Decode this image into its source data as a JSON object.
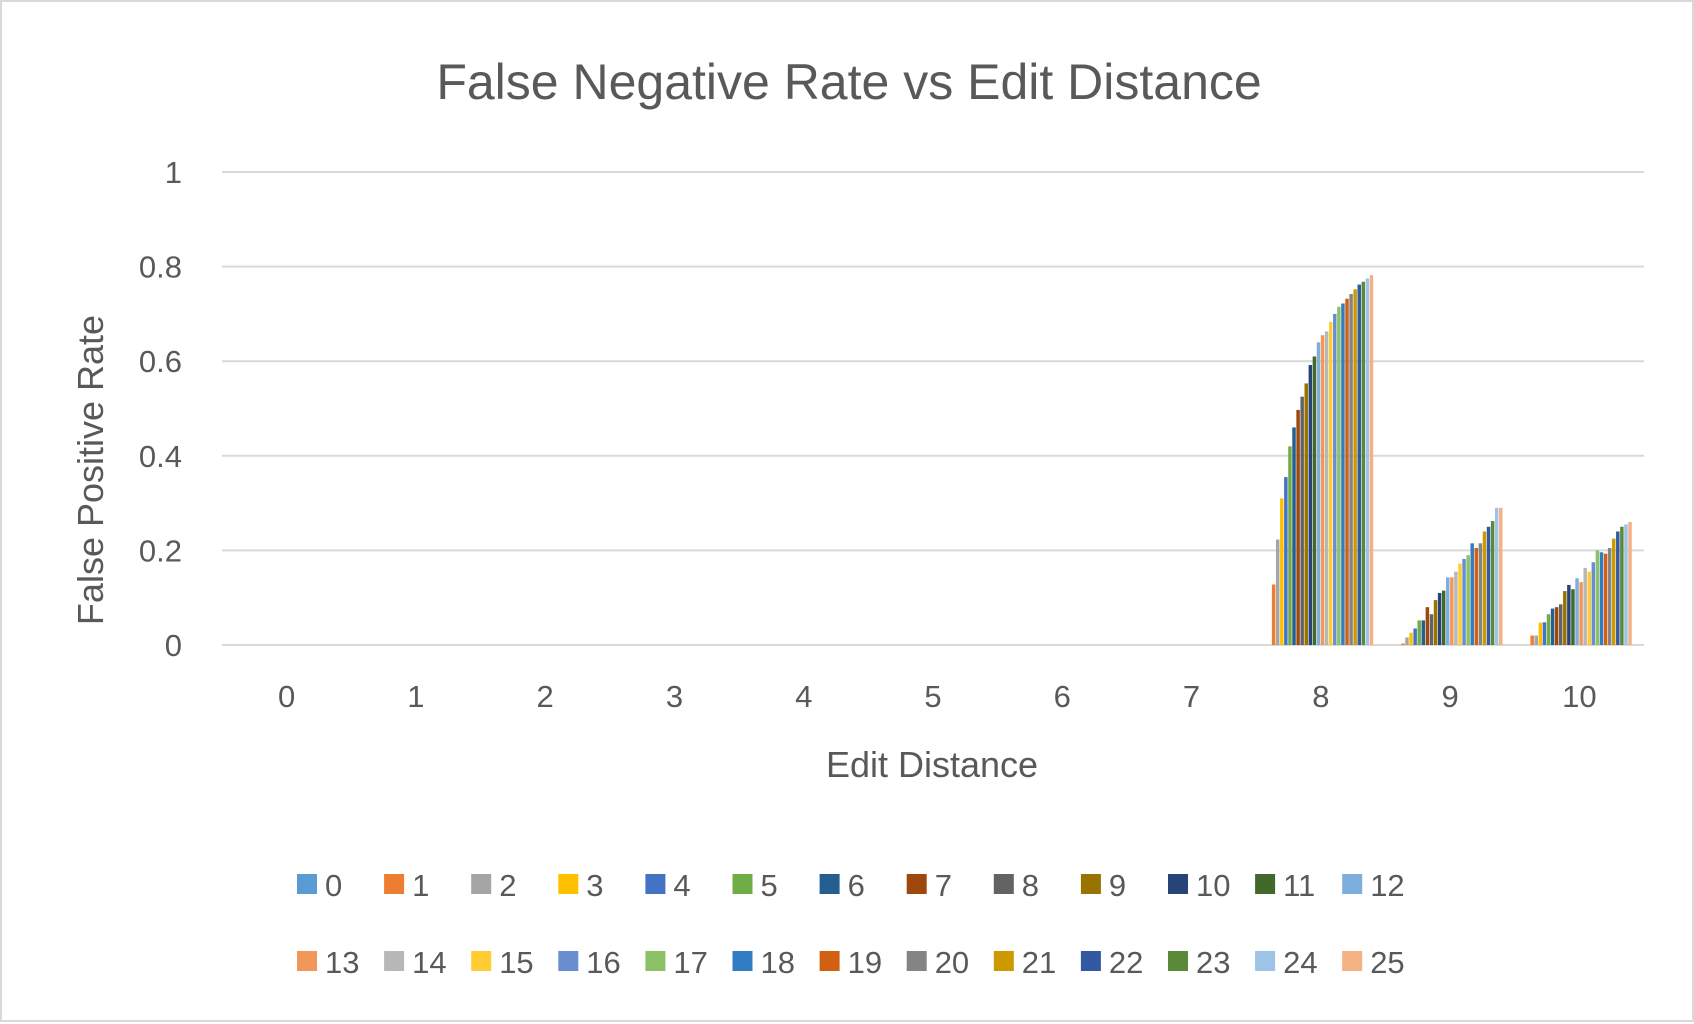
{
  "chart_data": {
    "type": "bar",
    "title": "False Negative Rate vs Edit Distance",
    "xlabel": "Edit Distance",
    "ylabel": "False Positive Rate",
    "ylim": [
      0,
      1
    ],
    "yticks": [
      "0",
      "0.2",
      "0.4",
      "0.6",
      "0.8",
      "1"
    ],
    "categories": [
      "0",
      "1",
      "2",
      "3",
      "4",
      "5",
      "6",
      "7",
      "8",
      "9",
      "10"
    ],
    "grid": true,
    "legend_position": "bottom",
    "series": [
      {
        "name": "0",
        "color": "#5b9bd5",
        "values": [
          0,
          0,
          0,
          0,
          0,
          0,
          0,
          0,
          0,
          0,
          0
        ]
      },
      {
        "name": "1",
        "color": "#ed7d31",
        "values": [
          0,
          0,
          0,
          0,
          0,
          0,
          0,
          0,
          0.128,
          0.003,
          0.02
        ]
      },
      {
        "name": "2",
        "color": "#a5a5a5",
        "values": [
          0,
          0,
          0,
          0,
          0,
          0,
          0,
          0,
          0.223,
          0.016,
          0.02
        ]
      },
      {
        "name": "3",
        "color": "#ffc000",
        "values": [
          0,
          0,
          0,
          0,
          0,
          0,
          0,
          0,
          0.31,
          0.026,
          0.047
        ]
      },
      {
        "name": "4",
        "color": "#4472c4",
        "values": [
          0,
          0,
          0,
          0,
          0,
          0,
          0,
          0,
          0.355,
          0.035,
          0.048
        ]
      },
      {
        "name": "5",
        "color": "#70ad47",
        "values": [
          0,
          0,
          0,
          0,
          0,
          0,
          0,
          0,
          0.42,
          0.052,
          0.065
        ]
      },
      {
        "name": "6",
        "color": "#255e91",
        "values": [
          0,
          0,
          0,
          0,
          0,
          0,
          0,
          0,
          0.46,
          0.052,
          0.077
        ]
      },
      {
        "name": "7",
        "color": "#9e480e",
        "values": [
          0,
          0,
          0,
          0,
          0,
          0,
          0,
          0,
          0.497,
          0.08,
          0.08
        ]
      },
      {
        "name": "8",
        "color": "#636363",
        "values": [
          0,
          0,
          0,
          0,
          0,
          0,
          0,
          0,
          0.525,
          0.065,
          0.086
        ]
      },
      {
        "name": "9",
        "color": "#997300",
        "values": [
          0,
          0,
          0,
          0,
          0,
          0,
          0,
          0,
          0.553,
          0.095,
          0.114
        ]
      },
      {
        "name": "10",
        "color": "#264478",
        "values": [
          0,
          0,
          0,
          0,
          0,
          0,
          0,
          0,
          0.592,
          0.11,
          0.127
        ]
      },
      {
        "name": "11",
        "color": "#43682b",
        "values": [
          0,
          0,
          0,
          0,
          0,
          0,
          0,
          0,
          0.61,
          0.115,
          0.118
        ]
      },
      {
        "name": "12",
        "color": "#7cafdd",
        "values": [
          0,
          0,
          0,
          0,
          0,
          0,
          0,
          0,
          0.64,
          0.143,
          0.141
        ]
      },
      {
        "name": "13",
        "color": "#f1975a",
        "values": [
          0,
          0,
          0,
          0,
          0,
          0,
          0,
          0,
          0.655,
          0.143,
          0.133
        ]
      },
      {
        "name": "14",
        "color": "#b7b7b7",
        "values": [
          0,
          0,
          0,
          0,
          0,
          0,
          0,
          0,
          0.663,
          0.155,
          0.163
        ]
      },
      {
        "name": "15",
        "color": "#ffcd33",
        "values": [
          0,
          0,
          0,
          0,
          0,
          0,
          0,
          0,
          0.683,
          0.172,
          0.155
        ]
      },
      {
        "name": "16",
        "color": "#698ed0",
        "values": [
          0,
          0,
          0,
          0,
          0,
          0,
          0,
          0,
          0.7,
          0.182,
          0.175
        ]
      },
      {
        "name": "17",
        "color": "#8cc168",
        "values": [
          0,
          0,
          0,
          0,
          0,
          0,
          0,
          0,
          0.715,
          0.19,
          0.2
        ]
      },
      {
        "name": "18",
        "color": "#327dc2",
        "values": [
          0,
          0,
          0,
          0,
          0,
          0,
          0,
          0,
          0.722,
          0.215,
          0.196
        ]
      },
      {
        "name": "19",
        "color": "#d26012",
        "values": [
          0,
          0,
          0,
          0,
          0,
          0,
          0,
          0,
          0.732,
          0.205,
          0.193
        ]
      },
      {
        "name": "20",
        "color": "#848484",
        "values": [
          0,
          0,
          0,
          0,
          0,
          0,
          0,
          0,
          0.742,
          0.215,
          0.205
        ]
      },
      {
        "name": "21",
        "color": "#cc9a00",
        "values": [
          0,
          0,
          0,
          0,
          0,
          0,
          0,
          0,
          0.752,
          0.24,
          0.225
        ]
      },
      {
        "name": "22",
        "color": "#335aa1",
        "values": [
          0,
          0,
          0,
          0,
          0,
          0,
          0,
          0,
          0.762,
          0.25,
          0.24
        ]
      },
      {
        "name": "23",
        "color": "#5a8a39",
        "values": [
          0,
          0,
          0,
          0,
          0,
          0,
          0,
          0,
          0.768,
          0.262,
          0.25
        ]
      },
      {
        "name": "24",
        "color": "#9dc3e6",
        "values": [
          0,
          0,
          0,
          0,
          0,
          0,
          0,
          0,
          0.775,
          0.29,
          0.255
        ]
      },
      {
        "name": "25",
        "color": "#f4b183",
        "values": [
          0,
          0,
          0,
          0,
          0,
          0,
          0,
          0,
          0.782,
          0.29,
          0.26
        ]
      }
    ]
  }
}
